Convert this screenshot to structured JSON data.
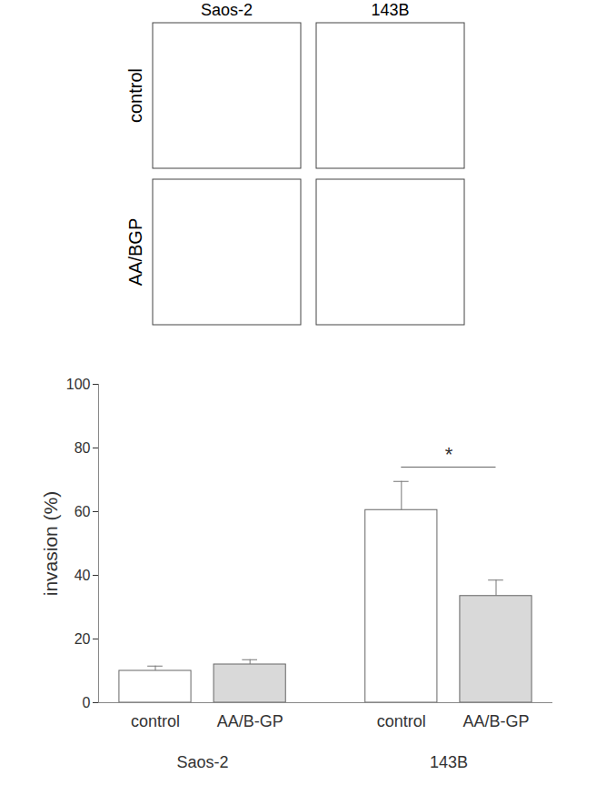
{
  "image_panels": {
    "columns": [
      "Saos-2",
      "143B"
    ],
    "rows": [
      "control",
      "AA/BGP"
    ]
  },
  "chart_data": {
    "type": "bar",
    "categories": [
      "control",
      "AA/B-GP",
      "control",
      "AA/B-GP"
    ],
    "groups": [
      "Saos-2",
      "Saos-2",
      "143B",
      "143B"
    ],
    "values": [
      10,
      12,
      60.5,
      33.5
    ],
    "errors": [
      1.5,
      1.5,
      9,
      5
    ],
    "colors": [
      "#ffffff",
      "#d9d9d9",
      "#ffffff",
      "#d9d9d9"
    ],
    "ylabel": "invasion (%)",
    "ylim": [
      0,
      100
    ],
    "yticks": [
      0,
      20,
      40,
      60,
      80,
      100
    ],
    "annotations": [
      {
        "text": "*",
        "between": [
          2,
          3
        ],
        "y": 74
      }
    ]
  }
}
